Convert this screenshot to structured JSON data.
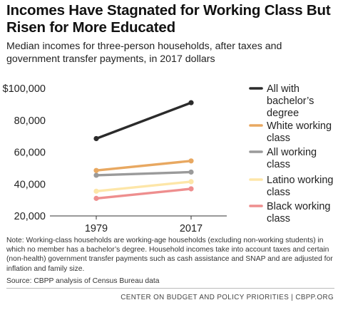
{
  "title": "Incomes Have Stagnated for Working Class But Risen for More Educated",
  "subtitle": "Median incomes for three-person households, after taxes and government transfer payments, in 2017 dollars",
  "note": "Note:  Working-class households are working-age households (excluding non-working students) in which no member has a bachelor’s degree.  Household incomes take into account taxes and certain (non-health) government transfer payments such as cash assistance and SNAP and are adjusted for inflation and family size.",
  "source": "Source: CBPP analysis of Census Bureau data",
  "footer": "CENTER ON BUDGET AND POLICY PRIORITIES | CBPP.ORG",
  "chart_data": {
    "type": "line",
    "x": [
      "1979",
      "2017"
    ],
    "ylim": [
      20000,
      100000
    ],
    "yticks": [
      20000,
      40000,
      60000,
      80000,
      100000
    ],
    "ytick_labels": [
      "20,000",
      "40,000",
      "60,000",
      "80,000",
      "$100,000"
    ],
    "legend_position": "right",
    "series": [
      {
        "name": "All with bachelor’s degree",
        "color": "#2b2b2b",
        "values": [
          68500,
          91000
        ]
      },
      {
        "name": "White working class",
        "color": "#e8a861",
        "values": [
          48500,
          54500
        ]
      },
      {
        "name": "All working class",
        "color": "#9a9a9a",
        "values": [
          45500,
          47500
        ]
      },
      {
        "name": "Latino working class",
        "color": "#fde6a8",
        "values": [
          35500,
          41500
        ]
      },
      {
        "name": "Black working class",
        "color": "#ee8e8e",
        "values": [
          31000,
          37000
        ]
      }
    ]
  }
}
